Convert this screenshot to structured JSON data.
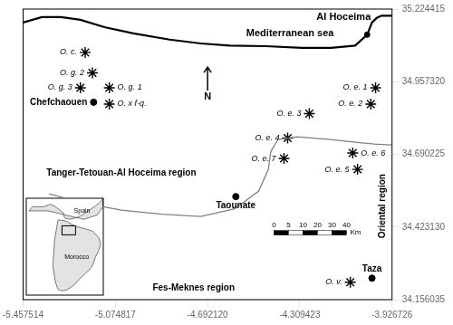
{
  "chart_data": [
    {
      "type": "scatter",
      "xlim": [
        -5.457514,
        -3.926726
      ],
      "ylim": [
        34.156035,
        35.224415
      ],
      "xticks": [
        -5.457514,
        -5.074817,
        {
          "value": -4.69212,
          "label": "-4.692120"
        },
        -4.309423,
        -3.926726
      ],
      "yticks": [
        34.156035,
        {
          "value": 34.42313,
          "label": "34.423130"
        },
        34.690225,
        {
          "value": 34.95732,
          "label": "34.957320"
        },
        35.224415
      ],
      "grid": false,
      "series": [
        {
          "type": "line",
          "color": "black",
          "x": [
            -5.457514,
            -5.38,
            -5.3,
            -5.22,
            -5.12,
            -5.0,
            -4.85,
            -4.72,
            -4.6,
            -4.45,
            -4.3,
            -4.18,
            -4.08,
            -4.03,
            -4.01,
            -3.99,
            -3.97,
            -3.926726
          ],
          "values": [
            35.175,
            35.195,
            35.195,
            35.185,
            35.158,
            35.135,
            35.112,
            35.098,
            35.09,
            35.088,
            35.082,
            35.082,
            35.09,
            35.13,
            35.175,
            35.192,
            35.2,
            35.2
          ]
        },
        {
          "type": "line",
          "color": "gray",
          "x": [
            -5.35,
            -5.2,
            -5.05,
            -4.88,
            -4.72,
            -4.58,
            -4.48,
            -4.44,
            -4.43,
            -4.4,
            -4.32,
            -4.18,
            -4.08,
            -4.0,
            -3.926726
          ],
          "values": [
            34.545,
            34.51,
            34.485,
            34.47,
            34.462,
            34.49,
            34.555,
            34.635,
            34.7,
            34.745,
            34.755,
            34.745,
            34.735,
            34.728,
            34.725
          ]
        },
        {
          "type": "scatter",
          "marker": "star",
          "color": "black",
          "x": [
            -5.2,
            -5.17,
            -5.22,
            -5.1,
            -5.1,
            -3.995,
            -4.015,
            -4.27,
            -4.36,
            -4.09,
            -4.07,
            -4.375,
            -4.1
          ],
          "values": [
            35.065,
            34.99,
            34.935,
            34.935,
            34.875,
            34.935,
            34.875,
            34.84,
            34.75,
            34.695,
            34.635,
            34.675,
            34.22
          ],
          "labels": [
            "O. c.",
            "O. g. 2",
            "O. g. 3",
            "O. g. 1",
            "O. x f-q.",
            "O. e. 1",
            "O. e. 2",
            "O. e. 3",
            "O. e. 4",
            "O. e. 6",
            "O. e. 5",
            "O. e. 7",
            "O. v."
          ]
        },
        {
          "type": "scatter",
          "marker": "circle",
          "color": "black",
          "x": [
            -5.165,
            -4.575,
            -4.01
          ],
          "values": [
            34.882,
            34.535,
            34.235
          ],
          "labels": [
            "Chefchaouen",
            "Taounate",
            "Taza"
          ]
        },
        {
          "type": "scatter",
          "marker": "circle",
          "color": "black",
          "x": [
            -4.03
          ],
          "values": [
            35.13
          ]
        }
      ],
      "annotations": [
        {
          "text": "Fes-Meknes region",
          "x": -4.75,
          "y": 34.2
        },
        {
          "text": "Tanger-Tetouan-Al Hoceima region",
          "x": -5.05,
          "y": 34.62
        },
        {
          "text": "Oriental region",
          "x": -3.968,
          "y": 34.5
        },
        {
          "text": "Mediterranean sea",
          "x": -4.35,
          "y": 35.135
        },
        {
          "text": "Al Hoceima",
          "x": -4.015,
          "y": 35.195
        },
        {
          "text": "N"
        }
      ],
      "scale_bar": {
        "labels": [
          "0",
          "5",
          "10",
          "20",
          "30",
          "40"
        ],
        "unit": "Km"
      }
    },
    {
      "type": "scatter",
      "xlim": [
        -9.5,
        -0.8
      ],
      "ylim": [
        27.0,
        38.5
      ],
      "tick_labels": false,
      "grid": false,
      "series": [
        {
          "type": "area",
          "color": "#d0d0d0",
          "x": [
            -9.2,
            -8.8,
            -7.5,
            -6.8,
            -6.2,
            -5.6,
            -5.35,
            -5.18,
            -5.05,
            -4.6,
            -3.8,
            -3.2,
            -2.5,
            -1.8,
            -1.2,
            -0.8,
            -0.8,
            -1.5,
            -3.0,
            -5.0,
            -7.0,
            -9.0,
            -9.2
          ],
          "values": [
            37.0,
            37.5,
            37.5,
            37.8,
            37.5,
            37.0,
            36.8,
            36.2,
            36.1,
            36.0,
            36.2,
            36.5,
            37.0,
            37.5,
            38.0,
            38.5,
            37.5,
            36.5,
            36.0,
            36.5,
            37.0,
            37.0,
            37.0
          ]
        },
        {
          "type": "area",
          "color": "#d0d0d0",
          "x": [
            -5.92,
            -5.5,
            -5.0,
            -4.4,
            -3.68,
            -2.9,
            -2.0,
            -1.3,
            -1.1,
            -1.35,
            -1.7,
            -1.9,
            -2.2,
            -2.9,
            -3.5,
            -4.0,
            -4.5,
            -5.0,
            -5.5,
            -5.92,
            -6.2,
            -6.5,
            -6.3,
            -5.92
          ],
          "values": [
            35.92,
            35.9,
            35.8,
            35.4,
            35.1,
            34.9,
            34.6,
            33.8,
            33.0,
            32.2,
            31.5,
            30.8,
            30.2,
            29.5,
            28.9,
            28.3,
            27.9,
            27.6,
            27.5,
            27.7,
            28.5,
            30.5,
            33.5,
            35.92
          ]
        },
        {
          "type": "line",
          "color": "black",
          "x": [
            -5.46,
            -3.93,
            -3.93,
            -5.46,
            -5.46
          ],
          "values": [
            34.16,
            34.16,
            35.23,
            35.23,
            34.16
          ]
        }
      ],
      "annotations": [
        {
          "text": "Morocco",
          "x": -3.8,
          "y": 31.5
        },
        {
          "text": "Spain",
          "x": -3.2,
          "y": 37.0
        }
      ]
    }
  ]
}
